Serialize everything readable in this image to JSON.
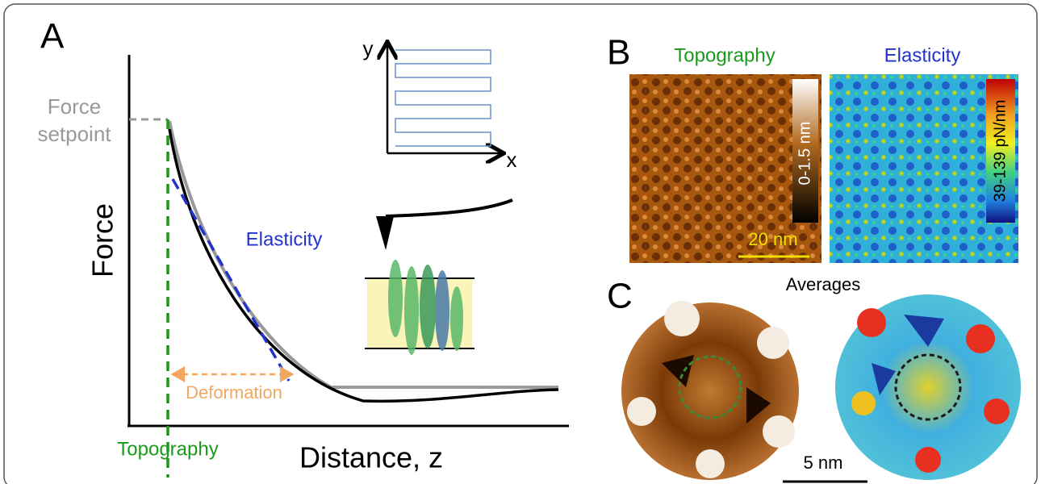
{
  "panel_a": {
    "label": "A",
    "setpoint": [
      "Force",
      "setpoint"
    ],
    "y_axis": "Force",
    "x_axis": "Distance, z",
    "curve_label": "Elasticity",
    "deformation": "Deformation",
    "topography": "Topography",
    "scan_y": "y",
    "scan_x": "x"
  },
  "panel_b": {
    "label": "B",
    "topography_title": "Topography",
    "elasticity_title": "Elasticity",
    "topography_scale": "0-1.5 nm",
    "scale_bar": "20 nm",
    "elasticity_scale": "39-139 pN/nm"
  },
  "panel_c": {
    "label": "C",
    "title": "Averages",
    "scale_bar": "5 nm"
  }
}
